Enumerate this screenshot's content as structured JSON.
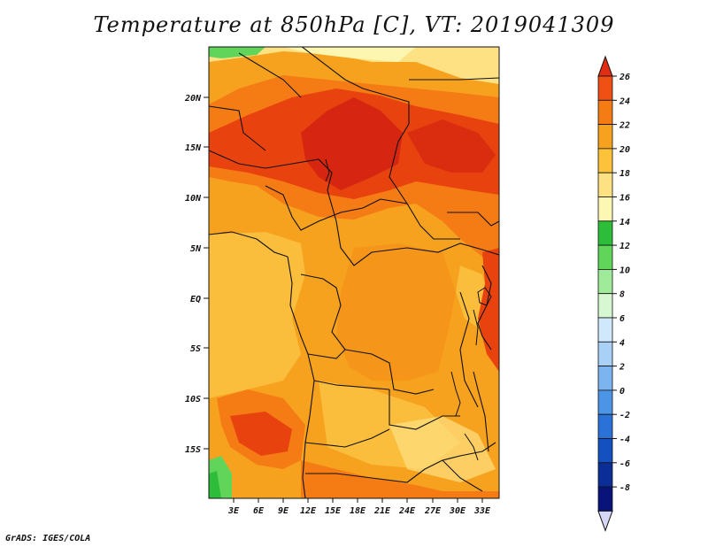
{
  "title": "Temperature at 850hPa [C], VT: 2019041309",
  "credit": "GrADS: IGES/COLA",
  "map": {
    "variable": "Temperature at 850hPa",
    "units": "C",
    "valid_time": "2019041309",
    "lon_range": [
      0,
      35
    ],
    "lat_range": [
      -20,
      24
    ],
    "lat_ticks": [
      "20N",
      "15N",
      "10N",
      "5N",
      "EQ",
      "5S",
      "10S",
      "15S"
    ],
    "lon_ticks": [
      "3E",
      "6E",
      "9E",
      "12E",
      "15E",
      "18E",
      "21E",
      "24E",
      "27E",
      "30E",
      "33E"
    ]
  },
  "colorbar": {
    "labels": [
      "26",
      "24",
      "22",
      "20",
      "18",
      "16",
      "14",
      "12",
      "10",
      "8",
      "6",
      "4",
      "2",
      "0",
      "-2",
      "-4",
      "-6",
      "-8"
    ],
    "colors": [
      "#e02d14",
      "#f05014",
      "#f57c14",
      "#f7a21e",
      "#fbc23a",
      "#fde182",
      "#fcf8b4",
      "#2ebd3a",
      "#60d55a",
      "#a0eb9a",
      "#d6f7d2",
      "#cfe8fb",
      "#a9d0f7",
      "#7cb4ef",
      "#4c94e6",
      "#2a72d8",
      "#1450bf",
      "#0a2e96",
      "#08147a"
    ],
    "under_color": "#d6d6f7"
  },
  "colors": {
    "warm_core": "#d62510",
    "hot": "#e8420f",
    "warm": "#f57c14",
    "mid": "#f7a21e",
    "mild": "#fbbd3c",
    "cool": "#fde182",
    "pale": "#fcf6b0",
    "green": "#60d55a",
    "border": "#111111"
  }
}
